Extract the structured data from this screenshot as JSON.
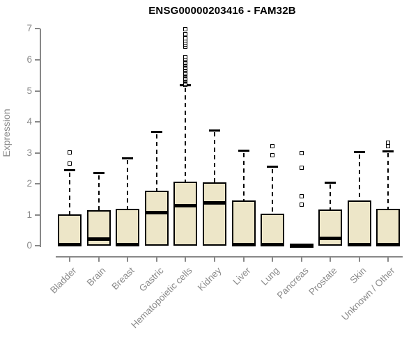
{
  "chart_data": {
    "type": "boxplot",
    "title": "ENSG00000203416 - FAM32B",
    "ylabel": "Expression",
    "xlabel": "",
    "ylim": [
      0,
      7
    ],
    "yticks": [
      0,
      1,
      2,
      3,
      4,
      5,
      6,
      7
    ],
    "grid": false,
    "legend": "none",
    "categories": [
      "Bladder",
      "Brain",
      "Breast",
      "Gastric",
      "Hematopoietic cells",
      "Kidney",
      "Liver",
      "Lung",
      "Pancreas",
      "Prostate",
      "Skin",
      "Unknown / Other"
    ],
    "series": [
      {
        "category": "Bladder",
        "whisker_low": 0,
        "q1": 0,
        "median": 0.04,
        "q3": 1.02,
        "whisker_high": 2.44,
        "outliers": [
          2.66,
          3.02
        ]
      },
      {
        "category": "Brain",
        "whisker_low": 0,
        "q1": 0,
        "median": 0.23,
        "q3": 1.15,
        "whisker_high": 2.35,
        "outliers": []
      },
      {
        "category": "Breast",
        "whisker_low": 0,
        "q1": 0,
        "median": 0.03,
        "q3": 1.2,
        "whisker_high": 2.83,
        "outliers": []
      },
      {
        "category": "Gastric",
        "whisker_low": 0,
        "q1": 0,
        "median": 1.08,
        "q3": 1.78,
        "whisker_high": 3.67,
        "outliers": []
      },
      {
        "category": "Hematopoietic cells",
        "whisker_low": 0,
        "q1": 0,
        "median": 1.3,
        "q3": 2.08,
        "whisker_high": 5.17,
        "outliers": [
          5.2,
          5.24,
          5.28,
          5.32,
          5.36,
          5.4,
          5.44,
          5.48,
          5.52,
          5.56,
          5.6,
          5.64,
          5.68,
          5.72,
          5.76,
          5.8,
          5.84,
          5.88,
          5.92,
          5.96,
          6.0,
          6.04,
          6.08,
          6.42,
          6.5,
          6.56,
          6.63,
          6.7,
          6.82,
          6.98
        ]
      },
      {
        "category": "Kidney",
        "whisker_low": 0,
        "q1": 0,
        "median": 1.38,
        "q3": 2.05,
        "whisker_high": 3.73,
        "outliers": []
      },
      {
        "category": "Liver",
        "whisker_low": 0,
        "q1": 0,
        "median": 0.04,
        "q3": 1.47,
        "whisker_high": 3.06,
        "outliers": []
      },
      {
        "category": "Lung",
        "whisker_low": 0,
        "q1": 0,
        "median": 0.04,
        "q3": 1.03,
        "whisker_high": 2.55,
        "outliers": [
          2.92,
          3.22
        ]
      },
      {
        "category": "Pancreas",
        "whisker_low": 0,
        "q1": 0,
        "median": 0.02,
        "q3": 0.04,
        "whisker_high": 0.04,
        "outliers": [
          1.33,
          1.6,
          2.51,
          3.0
        ]
      },
      {
        "category": "Prostate",
        "whisker_low": 0,
        "q1": 0,
        "median": 0.24,
        "q3": 1.18,
        "whisker_high": 2.04,
        "outliers": []
      },
      {
        "category": "Skin",
        "whisker_low": 0,
        "q1": 0,
        "median": 0.03,
        "q3": 1.47,
        "whisker_high": 3.02,
        "outliers": []
      },
      {
        "category": "Unknown / Other",
        "whisker_low": 0,
        "q1": 0,
        "median": 0.03,
        "q3": 1.2,
        "whisker_high": 3.05,
        "outliers": [
          3.22,
          3.32
        ]
      }
    ],
    "colors": {
      "box_fill": "#EDE6C8",
      "box_border": "#000000",
      "median": "#000000",
      "whisker": "#000000",
      "outlier_border": "#000000",
      "outlier_fill": "#FFFFFF",
      "axis": "#888888",
      "tick_label": "#8A8A8A",
      "title": "#000000",
      "background": "#FFFFFF"
    }
  }
}
